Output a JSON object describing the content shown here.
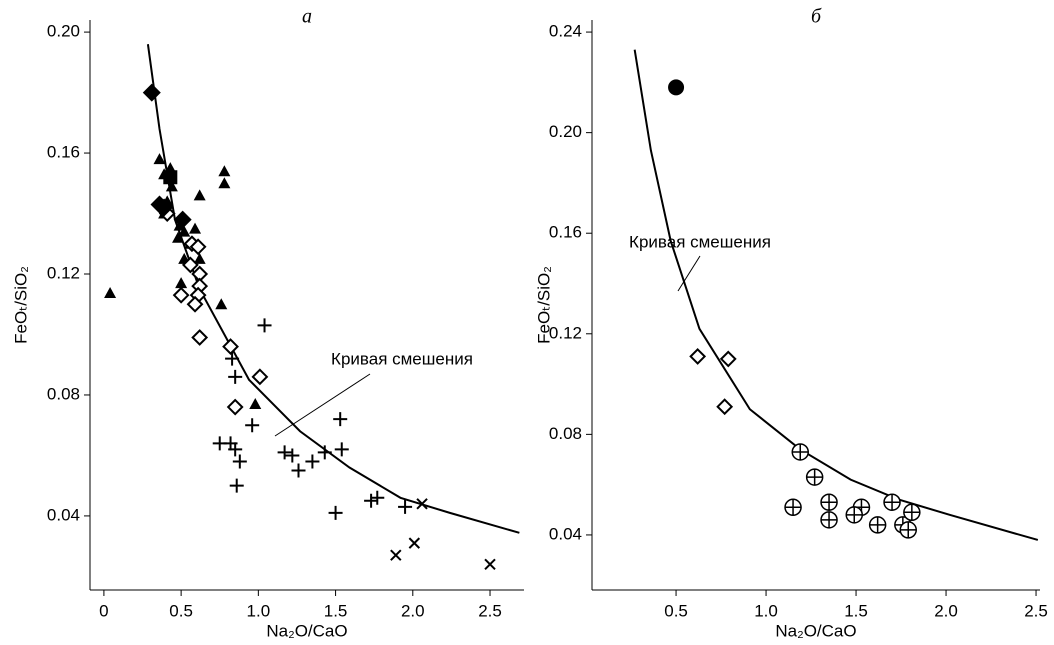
{
  "chart_data": [
    {
      "type": "scatter",
      "title": "а",
      "xlabel": "Na₂O/CaO",
      "ylabel": "FeOₜ/SiO₂",
      "xlim": [
        -0.09,
        2.72
      ],
      "ylim": [
        0.0155,
        0.204
      ],
      "xticks": [
        0,
        0.5,
        {
          "value": 1,
          "label": "1.0"
        },
        1.5,
        {
          "value": 2,
          "label": "2.0"
        },
        2.5
      ],
      "yticks": [
        0.04,
        0.08,
        0.12,
        0.16,
        {
          "value": 0.2,
          "label": "0.20"
        }
      ],
      "annotation": "Кривая смешения",
      "series": [
        {
          "marker": "line",
          "color": "#000000",
          "x": [
            0.285,
            0.36,
            0.46,
            0.62,
            0.94,
            1.27,
            1.59,
            1.92,
            2.24,
            2.69
          ],
          "values": [
            0.196,
            0.168,
            0.138,
            0.115,
            0.085,
            0.068,
            0.056,
            0.046,
            0.041,
            0.0344
          ]
        },
        {
          "marker": "triangle",
          "color": "#000000",
          "x": [
            0.04,
            0.36,
            0.39,
            0.43,
            0.44,
            0.41,
            0.39,
            0.49,
            0.52,
            0.48,
            0.56,
            0.59,
            0.62,
            0.52,
            0.5,
            0.76,
            0.78,
            0.78,
            0.98,
            0.62
          ],
          "values": [
            0.1137,
            0.158,
            0.153,
            0.155,
            0.149,
            0.144,
            0.14,
            0.136,
            0.134,
            0.132,
            0.13,
            0.135,
            0.146,
            0.125,
            0.117,
            0.11,
            0.154,
            0.15,
            0.077,
            0.125
          ]
        },
        {
          "marker": "diamond-open",
          "color": "#000000",
          "x": [
            0.38,
            0.41,
            0.57,
            0.56,
            0.61,
            0.62,
            0.62,
            0.61,
            0.5,
            0.59,
            0.62,
            0.82,
            1.01,
            0.85
          ],
          "values": [
            0.142,
            0.14,
            0.13,
            0.123,
            0.129,
            0.12,
            0.116,
            0.113,
            0.113,
            0.11,
            0.099,
            0.096,
            0.086,
            0.076
          ]
        },
        {
          "marker": "diamond",
          "color": "#000000",
          "x": [
            0.31,
            0.36,
            0.51,
            0.39
          ],
          "values": [
            0.18,
            0.143,
            0.138,
            0.142
          ]
        },
        {
          "marker": "square",
          "color": "#000000",
          "x": [
            0.43
          ],
          "values": [
            0.152
          ]
        },
        {
          "marker": "plus",
          "color": "#000000",
          "x": [
            1.04,
            0.83,
            0.85,
            0.75,
            0.82,
            0.85,
            0.88,
            0.86,
            0.96,
            1.17,
            1.22,
            1.26,
            1.35,
            1.43,
            1.53,
            1.54,
            1.5,
            1.73,
            1.77,
            1.95
          ],
          "values": [
            0.103,
            0.092,
            0.086,
            0.064,
            0.064,
            0.062,
            0.058,
            0.05,
            0.07,
            0.061,
            0.06,
            0.055,
            0.058,
            0.061,
            0.072,
            0.062,
            0.041,
            0.045,
            0.046,
            0.043
          ]
        },
        {
          "marker": "cross",
          "color": "#000000",
          "x": [
            2.06,
            1.89,
            2.01,
            2.5
          ],
          "values": [
            0.044,
            0.027,
            0.031,
            0.024
          ]
        }
      ]
    },
    {
      "type": "scatter",
      "title": "б",
      "xlabel": "Na₂O/CaO",
      "ylabel": "FeOₜ/SiO₂",
      "xlim": [
        0.033,
        2.522
      ],
      "ylim": [
        0.0181,
        0.2448
      ],
      "xticks": [
        0.5,
        {
          "value": 1,
          "label": "1.0"
        },
        1.5,
        {
          "value": 2,
          "label": "2.0"
        },
        2.5
      ],
      "yticks": [
        0.04,
        0.08,
        0.12,
        0.16,
        {
          "value": 0.2,
          "label": "0.20"
        },
        0.24
      ],
      "annotation": "Кривая смешения",
      "series": [
        {
          "marker": "line",
          "color": "#000000",
          "x": [
            0.27,
            0.36,
            0.47,
            0.63,
            0.91,
            1.19,
            1.47,
            1.74,
            2.02,
            2.51
          ],
          "values": [
            0.233,
            0.193,
            0.157,
            0.122,
            0.09,
            0.074,
            0.062,
            0.054,
            0.048,
            0.038
          ]
        },
        {
          "marker": "circle",
          "color": "#000000",
          "x": [
            0.5
          ],
          "values": [
            0.218
          ]
        },
        {
          "marker": "diamond-open",
          "color": "#000000",
          "x": [
            0.62,
            0.79,
            0.77
          ],
          "values": [
            0.111,
            0.11,
            0.091
          ]
        },
        {
          "marker": "circle-plus",
          "color": "#000000",
          "x": [
            1.19,
            1.27,
            1.15,
            1.35,
            1.35,
            1.53,
            1.49,
            1.7,
            1.62,
            1.76,
            1.81,
            1.79
          ],
          "values": [
            0.073,
            0.063,
            0.051,
            0.053,
            0.046,
            0.051,
            0.048,
            0.053,
            0.044,
            0.044,
            0.049,
            0.042
          ]
        }
      ]
    }
  ]
}
